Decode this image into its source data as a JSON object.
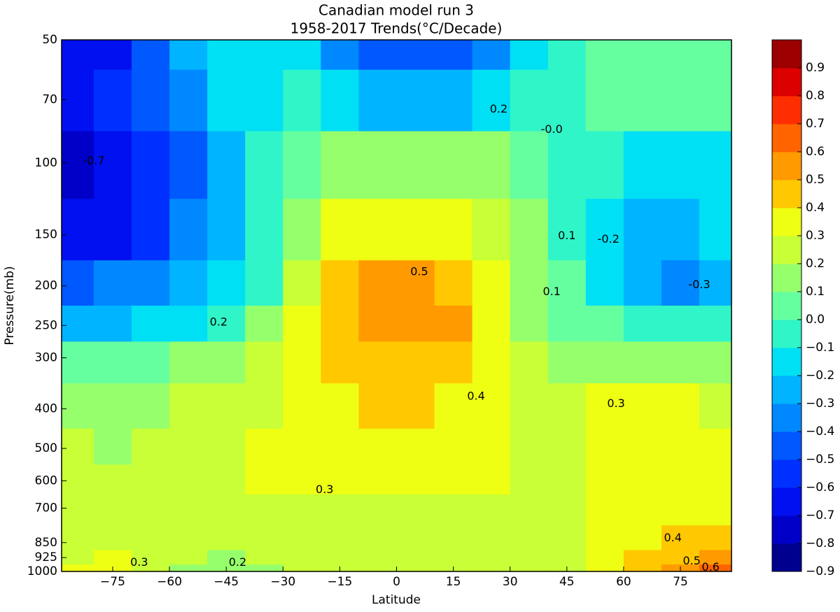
{
  "chart_data": {
    "type": "contour",
    "title": "Canadian model run 3",
    "subtitle": "1958-2017 Trends(°C/Decade)",
    "xlabel": "Latitude",
    "ylabel": "Pressure(mb)",
    "xlim": [
      -88.5,
      88.5
    ],
    "xticks": [
      {
        "value": -75,
        "label": "−75"
      },
      {
        "value": -60,
        "label": "−60"
      },
      {
        "value": -45,
        "label": "−45"
      },
      {
        "value": -30,
        "label": "−30"
      },
      {
        "value": -15,
        "label": "−15"
      },
      0,
      15,
      30,
      45,
      60,
      75
    ],
    "ylim": [
      50,
      1000
    ],
    "ylog": true,
    "yinvert": true,
    "yticks": [
      50,
      70,
      100,
      150,
      200,
      250,
      300,
      400,
      500,
      600,
      700,
      850,
      925,
      1000
    ],
    "x": [
      -85,
      -75,
      -65,
      -55,
      -45,
      -35,
      -25,
      -15,
      -5,
      5,
      15,
      25,
      35,
      45,
      55,
      65,
      75,
      85
    ],
    "y": [
      50,
      70,
      100,
      150,
      200,
      250,
      300,
      400,
      500,
      600,
      700,
      850,
      925,
      1000
    ],
    "z": [
      [
        -0.7,
        -0.7,
        -0.5,
        -0.3,
        -0.2,
        -0.2,
        -0.2,
        -0.4,
        -0.5,
        -0.5,
        -0.5,
        -0.4,
        -0.2,
        -0.1,
        0.0,
        0.0,
        0.0,
        0.0
      ],
      [
        -0.7,
        -0.6,
        -0.5,
        -0.4,
        -0.2,
        -0.15,
        -0.1,
        -0.2,
        -0.3,
        -0.3,
        -0.3,
        -0.2,
        -0.1,
        -0.05,
        0.0,
        0.0,
        0.0,
        0.0
      ],
      [
        -0.75,
        -0.7,
        -0.55,
        -0.45,
        -0.3,
        -0.1,
        0.05,
        0.1,
        0.1,
        0.1,
        0.1,
        0.1,
        0.05,
        -0.05,
        -0.1,
        -0.15,
        -0.15,
        -0.15
      ],
      [
        -0.7,
        -0.65,
        -0.55,
        -0.4,
        -0.25,
        -0.1,
        0.15,
        0.35,
        0.35,
        0.35,
        0.35,
        0.25,
        0.1,
        -0.05,
        -0.15,
        -0.25,
        -0.25,
        -0.15
      ],
      [
        -0.45,
        -0.4,
        -0.35,
        -0.3,
        -0.2,
        -0.05,
        0.25,
        0.45,
        0.55,
        0.55,
        0.45,
        0.3,
        0.1,
        0.0,
        -0.2,
        -0.3,
        -0.35,
        -0.25
      ],
      [
        -0.25,
        -0.25,
        -0.2,
        -0.15,
        -0.1,
        0.15,
        0.3,
        0.45,
        0.55,
        0.55,
        0.5,
        0.35,
        0.15,
        0.05,
        0.0,
        -0.05,
        -0.05,
        -0.05
      ],
      [
        0.05,
        0.05,
        0.08,
        0.12,
        0.15,
        0.2,
        0.3,
        0.42,
        0.45,
        0.45,
        0.42,
        0.35,
        0.2,
        0.15,
        0.15,
        0.12,
        0.12,
        0.12
      ],
      [
        0.15,
        0.15,
        0.15,
        0.2,
        0.2,
        0.25,
        0.35,
        0.38,
        0.4,
        0.4,
        0.38,
        0.35,
        0.25,
        0.22,
        0.3,
        0.32,
        0.32,
        0.25
      ],
      [
        0.2,
        0.15,
        0.2,
        0.22,
        0.25,
        0.3,
        0.35,
        0.35,
        0.35,
        0.35,
        0.35,
        0.35,
        0.28,
        0.25,
        0.32,
        0.35,
        0.35,
        0.35
      ],
      [
        0.25,
        0.25,
        0.25,
        0.25,
        0.25,
        0.3,
        0.32,
        0.35,
        0.35,
        0.35,
        0.35,
        0.32,
        0.28,
        0.25,
        0.32,
        0.35,
        0.35,
        0.35
      ],
      [
        0.25,
        0.25,
        0.25,
        0.25,
        0.25,
        0.28,
        0.28,
        0.28,
        0.28,
        0.28,
        0.28,
        0.28,
        0.25,
        0.25,
        0.32,
        0.35,
        0.35,
        0.35
      ],
      [
        0.25,
        0.25,
        0.25,
        0.25,
        0.25,
        0.25,
        0.25,
        0.25,
        0.25,
        0.25,
        0.25,
        0.25,
        0.25,
        0.25,
        0.32,
        0.38,
        0.42,
        0.42
      ],
      [
        0.28,
        0.3,
        0.25,
        0.2,
        0.18,
        0.2,
        0.25,
        0.25,
        0.25,
        0.25,
        0.25,
        0.25,
        0.25,
        0.25,
        0.32,
        0.42,
        0.48,
        0.5
      ],
      [
        0.3,
        0.32,
        0.25,
        0.18,
        0.15,
        0.18,
        0.25,
        0.25,
        0.25,
        0.25,
        0.25,
        0.25,
        0.25,
        0.25,
        0.32,
        0.45,
        0.55,
        0.6
      ]
    ],
    "contour_labels": [
      {
        "text": "0.5",
        "x": 6,
        "y": 185
      },
      {
        "text": "0.4",
        "x": 21,
        "y": 373
      },
      {
        "text": "0.3",
        "x": -19,
        "y": 632
      },
      {
        "text": "0.3",
        "x": 58,
        "y": 389
      },
      {
        "text": "0.2",
        "x": -47,
        "y": 246
      },
      {
        "text": "0.1",
        "x": 41,
        "y": 207
      },
      {
        "text": "0.1",
        "x": 45,
        "y": 151
      },
      {
        "text": "-0.0",
        "x": 41,
        "y": 83
      },
      {
        "text": "0.2",
        "x": 27,
        "y": 74
      },
      {
        "text": "-0.2",
        "x": 56,
        "y": 154
      },
      {
        "text": "-0.3",
        "x": 80,
        "y": 199
      },
      {
        "text": "-0.7",
        "x": -80,
        "y": 99
      },
      {
        "text": "0.4",
        "x": 73,
        "y": 829
      },
      {
        "text": "0.5",
        "x": 78,
        "y": 944
      },
      {
        "text": "0.6",
        "x": 83,
        "y": 978
      },
      {
        "text": "0.3",
        "x": -68,
        "y": 952
      },
      {
        "text": "0.2",
        "x": -42,
        "y": 952
      }
    ],
    "colorbar": {
      "ticks": [
        {
          "value": -0.9,
          "label": "−0.9"
        },
        {
          "value": -0.8,
          "label": "−0.8"
        },
        {
          "value": -0.7,
          "label": "−0.7"
        },
        {
          "value": -0.6,
          "label": "−0.6"
        },
        {
          "value": -0.5,
          "label": "−0.5"
        },
        {
          "value": -0.4,
          "label": "−0.4"
        },
        {
          "value": -0.3,
          "label": "−0.3"
        },
        {
          "value": -0.2,
          "label": "−0.2"
        },
        {
          "value": -0.1,
          "label": "−0.1"
        },
        {
          "value": 0,
          "label": "0.0"
        },
        0.1,
        0.2,
        0.3,
        0.4,
        0.5,
        0.6,
        0.7,
        0.8,
        0.9
      ],
      "colors": [
        "#00008f",
        "#0000c8",
        "#0010f0",
        "#0030ff",
        "#0058ff",
        "#0088ff",
        "#00b4ff",
        "#00e0f4",
        "#30f5c8",
        "#66ffa0",
        "#96ff6c",
        "#c8ff36",
        "#eeff14",
        "#ffc800",
        "#ff9a00",
        "#ff6400",
        "#ff2e00",
        "#dc0000",
        "#9c0000"
      ]
    }
  }
}
